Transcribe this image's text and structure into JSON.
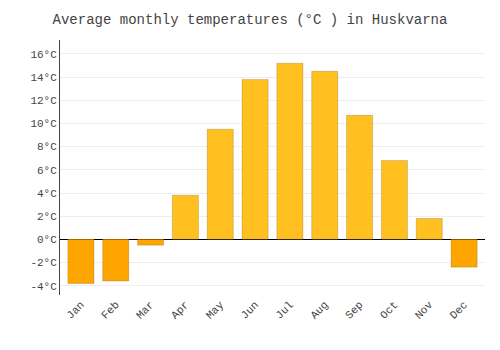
{
  "chart_data": {
    "type": "bar",
    "title": "Average monthly temperatures (°C ) in Huskvarna",
    "categories": [
      "Jan",
      "Feb",
      "Mar",
      "Apr",
      "May",
      "Jun",
      "Jul",
      "Aug",
      "Sep",
      "Oct",
      "Nov",
      "Dec"
    ],
    "values": [
      -3.8,
      -3.6,
      -0.5,
      3.8,
      9.5,
      13.8,
      15.2,
      14.5,
      10.7,
      6.8,
      1.8,
      -2.4
    ],
    "colors": [
      "#FFA500",
      "#FFA500",
      "#FFA500",
      "#FFC020",
      "#FFC020",
      "#FFC020",
      "#FFC020",
      "#FFC020",
      "#FFC020",
      "#FFC020",
      "#FFC020",
      "#FFA500"
    ],
    "ylim": [
      -4.8,
      17.2
    ],
    "yticks": [
      {
        "value": -4,
        "label": "-4°C"
      },
      {
        "value": -2,
        "label": "-2°C"
      },
      {
        "value": 0,
        "label": "0°C"
      },
      {
        "value": 2,
        "label": "2°C"
      },
      {
        "value": 4,
        "label": "4°C"
      },
      {
        "value": 6,
        "label": "6°C"
      },
      {
        "value": 8,
        "label": "8°C"
      },
      {
        "value": 10,
        "label": "10°C"
      },
      {
        "value": 12,
        "label": "12°C"
      },
      {
        "value": 14,
        "label": "14°C"
      },
      {
        "value": 16,
        "label": "16°C"
      }
    ],
    "grid": true
  }
}
